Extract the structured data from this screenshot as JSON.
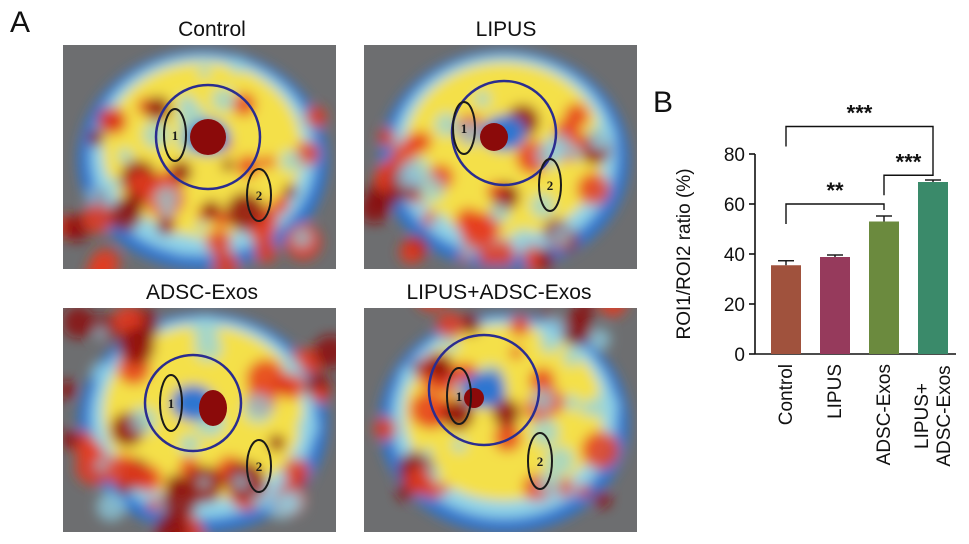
{
  "figure": {
    "panel_a_letter": "A",
    "panel_b_letter": "B"
  },
  "panel_a": {
    "images": [
      {
        "title": "Control",
        "roi_labels": [
          "1",
          "2"
        ]
      },
      {
        "title": "LIPUS",
        "roi_labels": [
          "1",
          "2"
        ]
      },
      {
        "title": "ADSC-Exos",
        "roi_labels": [
          "1",
          "2"
        ]
      },
      {
        "title": "LIPUS+ADSC-Exos",
        "roi_labels": [
          "1",
          "2"
        ]
      }
    ],
    "colors": {
      "background": "#6d6e70",
      "roi_circle": "#2b2d8f",
      "roi_ellipse": "#1a1a1a",
      "hot": "#8b0a0a",
      "warm": "#e53b1d",
      "mid": "#f4e04a",
      "cool": "#8fd3e8",
      "cold": "#2f76d0"
    }
  },
  "chart_data": {
    "type": "bar",
    "categories": [
      "Control",
      "LIPUS",
      "ADSC-Exos",
      "LIPUS+\nADSC-Exos"
    ],
    "values": [
      35.5,
      38.8,
      53,
      68.8
    ],
    "errors": [
      1.8,
      0.8,
      2.2,
      0.8
    ],
    "bar_colors": [
      "#a0523d",
      "#963a5c",
      "#6b8a3e",
      "#3a8a6a"
    ],
    "ylabel": "ROI1/ROI2 ratio (%)",
    "ylim": [
      0,
      80
    ],
    "yticks": [
      0,
      20,
      40,
      60,
      80
    ],
    "significance": [
      {
        "from": 0,
        "to": 2,
        "label": "**"
      },
      {
        "from": 2,
        "to": 3,
        "label": "***"
      },
      {
        "from": 0,
        "to": 3,
        "label": "***"
      }
    ]
  }
}
